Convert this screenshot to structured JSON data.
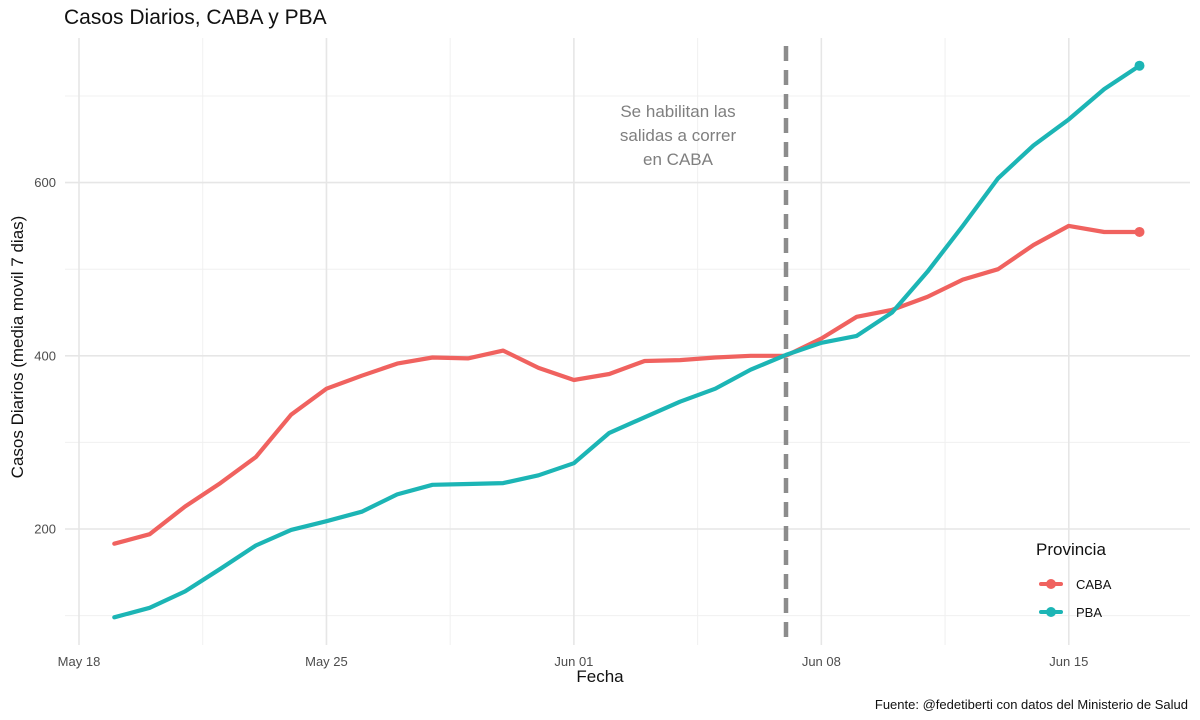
{
  "title": "Casos Diarios, CABA y PBA",
  "caption": "Fuente: @fedetiberti con datos del Ministerio de Salud",
  "chart_data": {
    "type": "line",
    "title": "Casos Diarios, CABA y PBA",
    "xlabel": "Fecha",
    "ylabel": "Casos Diarios (media movil 7 dias)",
    "x_type": "date",
    "x_ticks": [
      "May 18",
      "May 25",
      "Jun 01",
      "Jun 08",
      "Jun 15"
    ],
    "y_ticks": [
      200,
      400,
      600
    ],
    "ylim": [
      70,
      760
    ],
    "grid": true,
    "legend_title": "Provincia",
    "legend_position": "bottom-right",
    "x": [
      "May 19",
      "May 20",
      "May 21",
      "May 22",
      "May 23",
      "May 24",
      "May 25",
      "May 26",
      "May 27",
      "May 28",
      "May 29",
      "May 30",
      "May 31",
      "Jun 01",
      "Jun 02",
      "Jun 03",
      "Jun 04",
      "Jun 05",
      "Jun 06",
      "Jun 07",
      "Jun 08",
      "Jun 09",
      "Jun 10",
      "Jun 11",
      "Jun 12",
      "Jun 13",
      "Jun 14",
      "Jun 15",
      "Jun 16",
      "Jun 17"
    ],
    "series": [
      {
        "name": "CABA",
        "color": "#f0625f",
        "values": [
          183,
          194,
          226,
          253,
          283,
          332,
          362,
          377,
          391,
          398,
          397,
          406,
          386,
          372,
          379,
          394,
          395,
          398,
          400,
          400,
          420,
          445,
          453,
          468,
          488,
          500,
          528,
          550,
          543,
          543
        ]
      },
      {
        "name": "PBA",
        "color": "#1cb5b5",
        "values": [
          98,
          109,
          128,
          154,
          181,
          199,
          209,
          220,
          240,
          251,
          252,
          253,
          262,
          276,
          311,
          329,
          347,
          362,
          384,
          401,
          415,
          423,
          450,
          497,
          550,
          605,
          643,
          673,
          708,
          735
        ]
      }
    ],
    "annotation": {
      "x": "Jun 07",
      "text": "Se habilitan las\nsalidas a correr\nen CABA"
    }
  }
}
